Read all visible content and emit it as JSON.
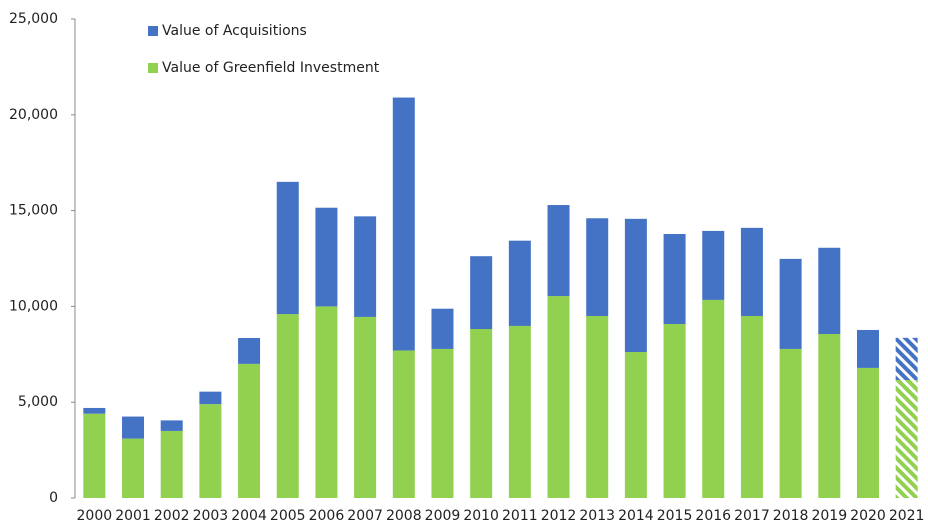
{
  "chart_data": {
    "type": "stacked_bar",
    "categories": [
      "2000",
      "2001",
      "2002",
      "2003",
      "2004",
      "2005",
      "2006",
      "2007",
      "2008",
      "2009",
      "2010",
      "2011",
      "2012",
      "2013",
      "2014",
      "2015",
      "2016",
      "2017",
      "2018",
      "2019",
      "2020",
      "2021"
    ],
    "series": [
      {
        "name": "Value of Greenfield Investment",
        "color": "#92d050",
        "values": [
          4400,
          3100,
          3500,
          4900,
          7000,
          9600,
          10000,
          9450,
          7700,
          7780,
          8820,
          8980,
          10540,
          9500,
          7620,
          9080,
          10340,
          9500,
          7780,
          8560,
          6790,
          6160
        ]
      },
      {
        "name": "Value of Acquisitions",
        "color": "#4472c4",
        "values": [
          300,
          1150,
          550,
          650,
          1350,
          6900,
          5150,
          5250,
          13200,
          2100,
          3800,
          4450,
          4750,
          5100,
          6950,
          4700,
          3600,
          4600,
          4700,
          4500,
          1980,
          2200
        ]
      }
    ],
    "hatched": [
      21
    ],
    "ylim": [
      0,
      25000
    ],
    "yticks": [
      0,
      {
        "value": 5000,
        "label": "5,000"
      },
      {
        "value": 10000,
        "label": "10,000"
      },
      {
        "value": 15000,
        "label": "15,000"
      },
      {
        "value": 20000,
        "label": "20,000"
      },
      {
        "value": 25000,
        "label": "25,000"
      }
    ]
  }
}
